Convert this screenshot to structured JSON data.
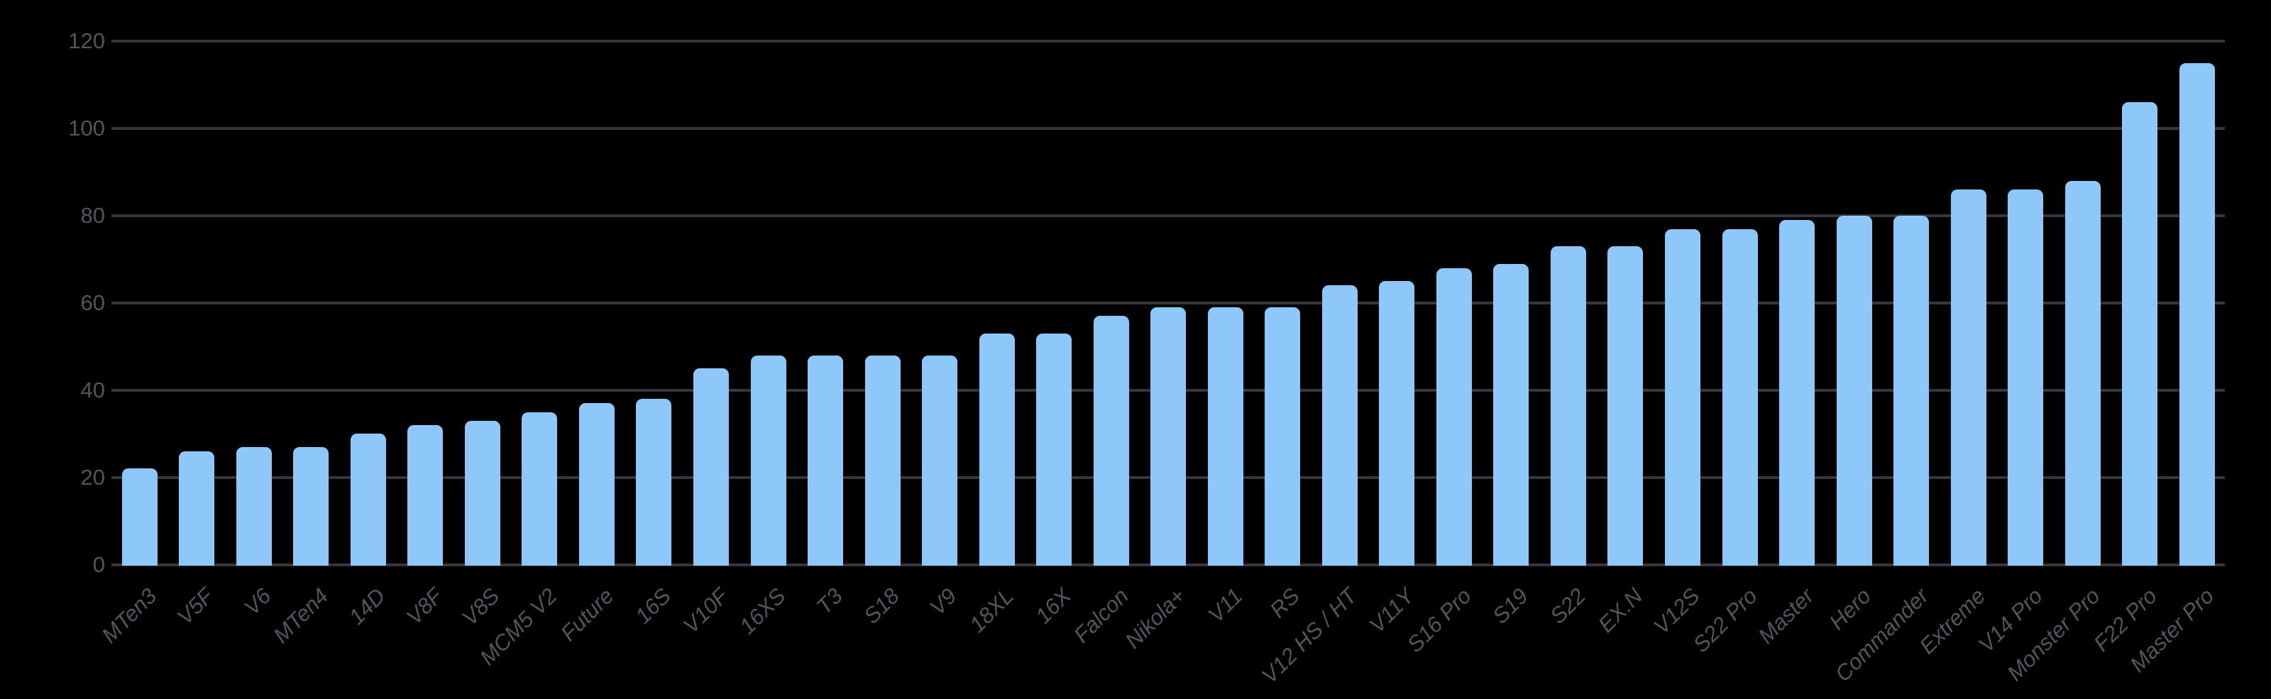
{
  "chart_data": {
    "type": "bar",
    "title": "",
    "xlabel": "",
    "ylabel": "",
    "categories": [
      "MTen3",
      "V5F",
      "V6",
      "MTen4",
      "14D",
      "V8F",
      "V8S",
      "MCM5 V2",
      "Future",
      "16S",
      "V10F",
      "16XS",
      "T3",
      "S18",
      "V9",
      "18XL",
      "16X",
      "Falcon",
      "Nikola+",
      "V11",
      "RS",
      "V12 HS / HT",
      "V11Y",
      "S16 Pro",
      "S19",
      "S22",
      "EX.N",
      "V12S",
      "S22 Pro",
      "Master",
      "Hero",
      "Commander",
      "Extreme",
      "V14 Pro",
      "Monster Pro",
      "F22 Pro",
      "Master Pro"
    ],
    "values": [
      22,
      26,
      27,
      27,
      30,
      32,
      33,
      35,
      37,
      38,
      45,
      48,
      48,
      48,
      48,
      53,
      53,
      57,
      59,
      59,
      59,
      64,
      65,
      68,
      69,
      73,
      73,
      77,
      77,
      79,
      80,
      80,
      86,
      86,
      88,
      106,
      115
    ],
    "y_ticks": [
      "0",
      "20",
      "40",
      "60",
      "80",
      "100",
      "120"
    ],
    "y_tick_values": [
      0,
      20,
      40,
      60,
      80,
      100,
      120
    ],
    "ylim": [
      0,
      120
    ],
    "grid": true,
    "legend_position": "none",
    "colors": {
      "background": "#000000",
      "bar": "#8ec8fa",
      "gridline": "#38363d",
      "axis_label": "#57535e"
    }
  }
}
